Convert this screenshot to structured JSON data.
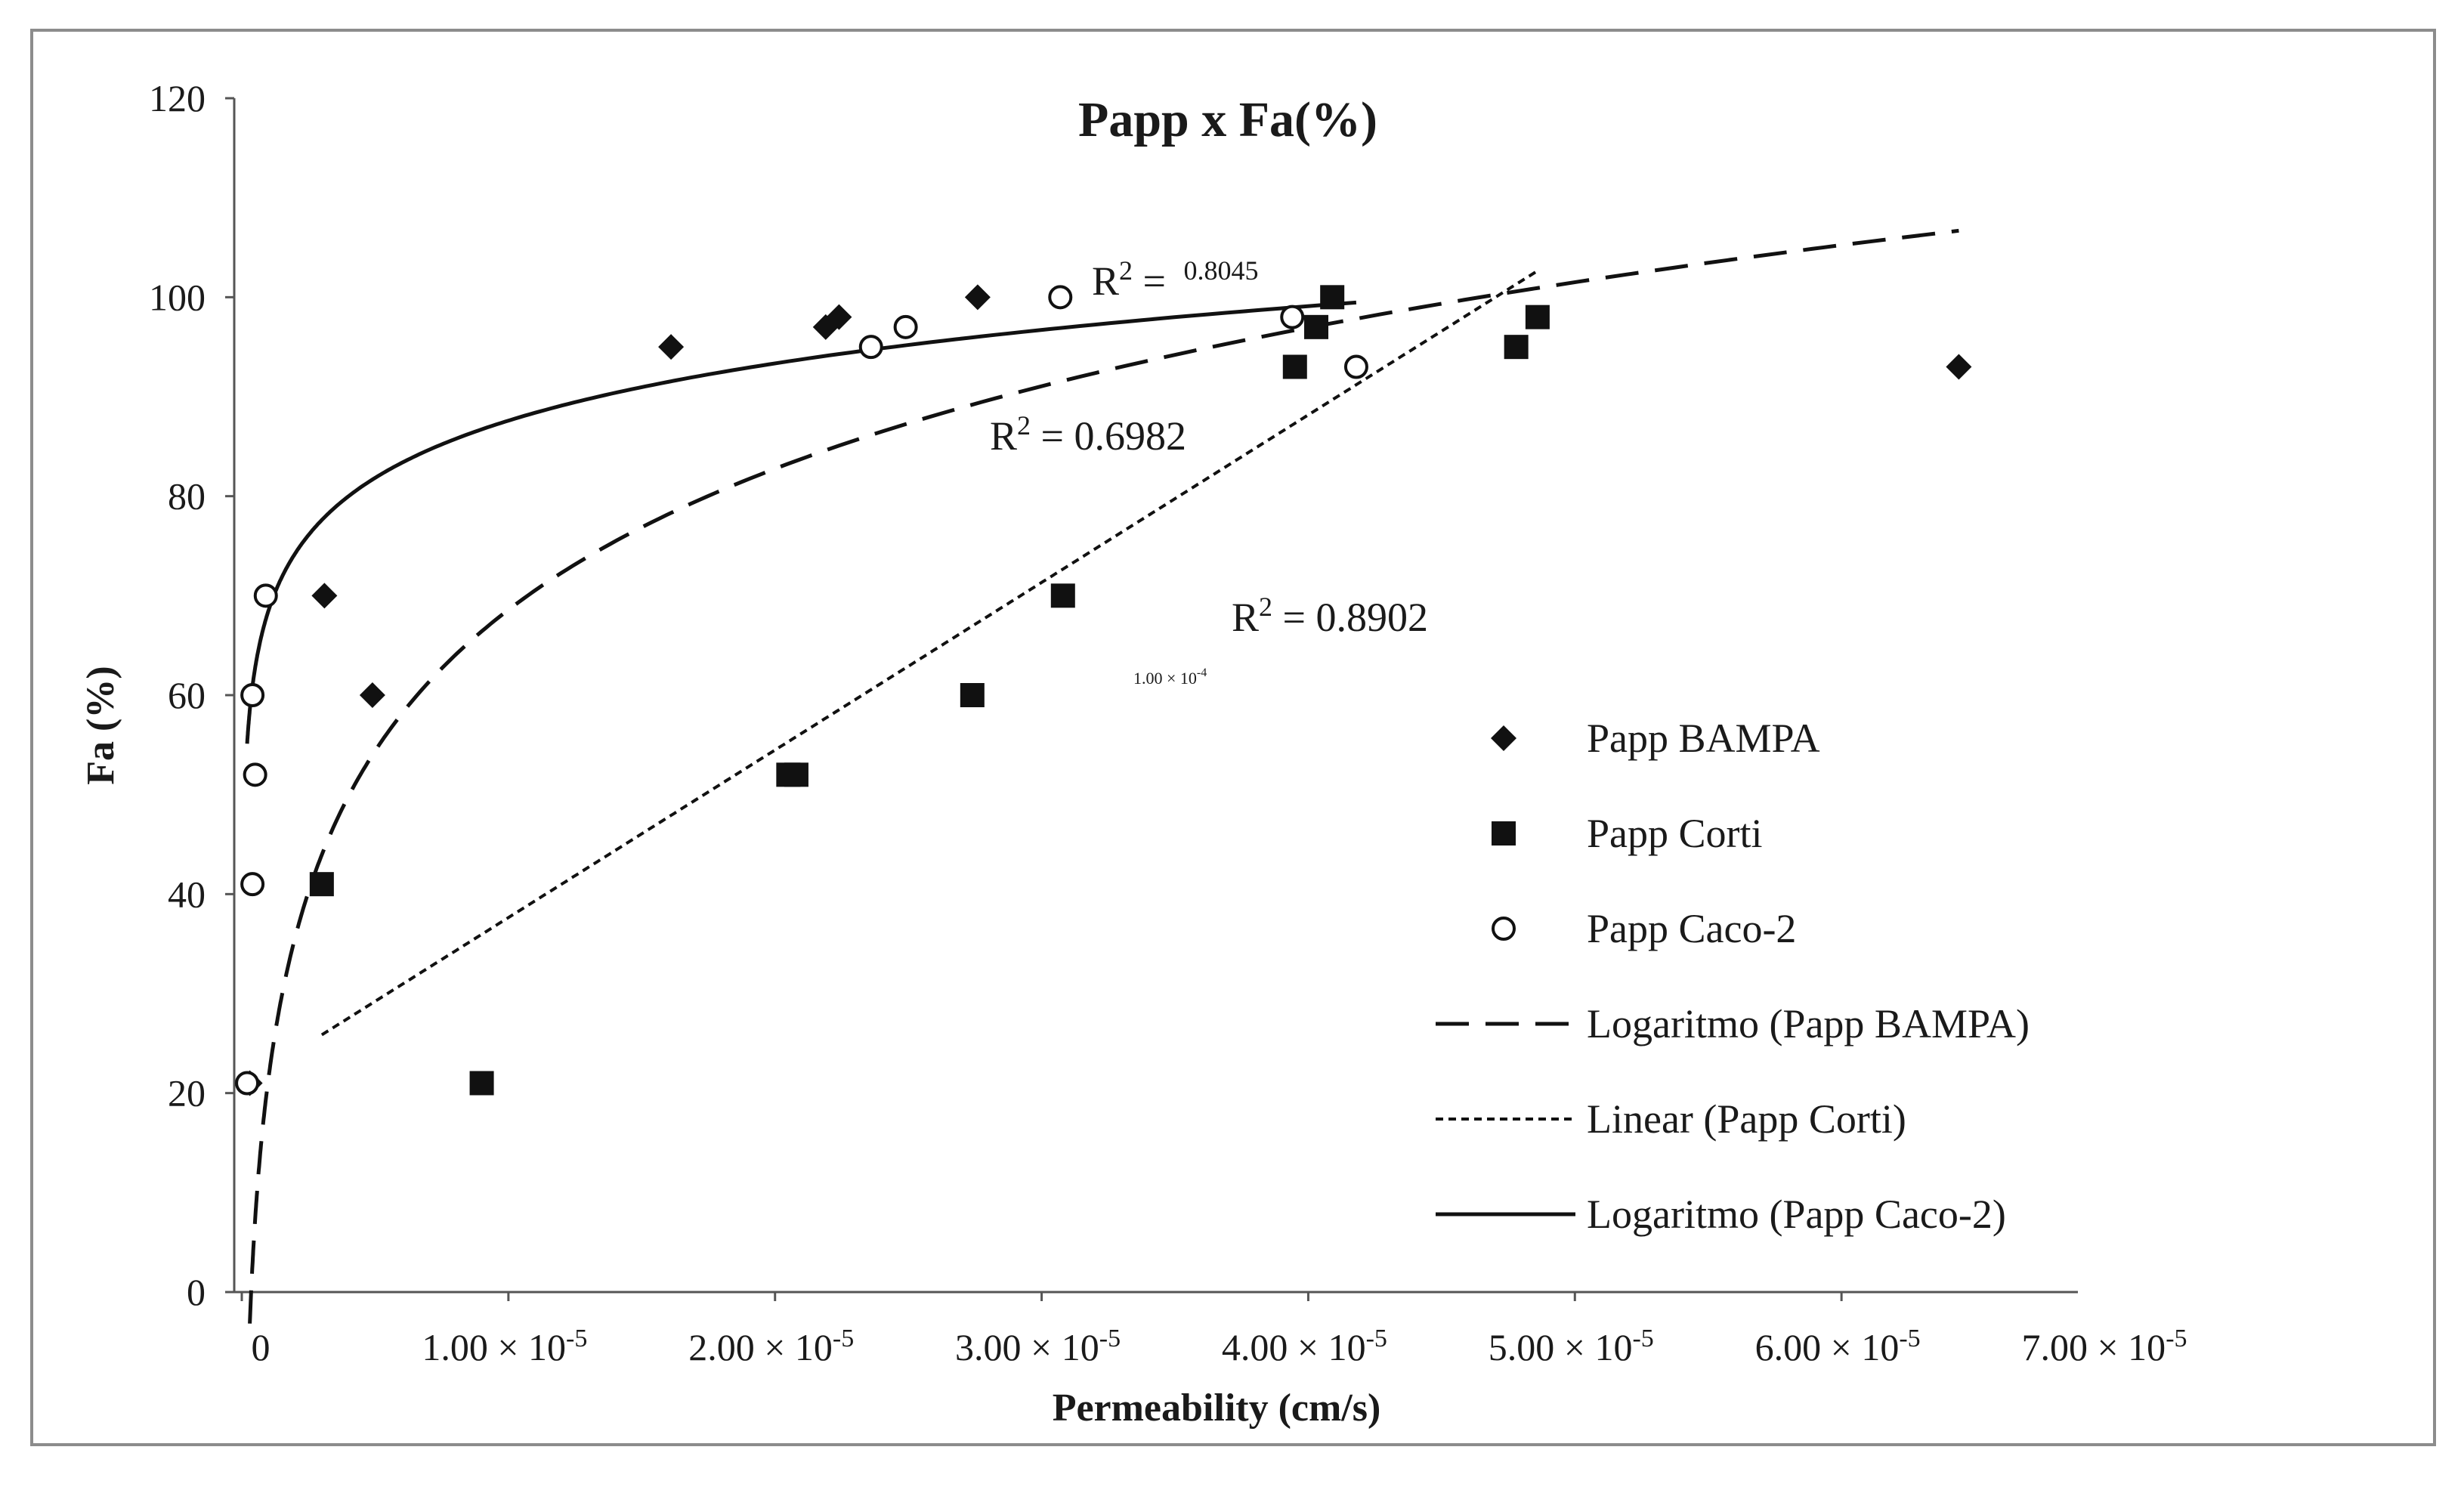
{
  "chart_data": {
    "type": "scatter",
    "title": "Papp x Fa(%)",
    "xlabel": "Permeability (cm/s)",
    "ylabel": "Fa (%)",
    "xlim": [
      0,
      7e-05
    ],
    "ylim": [
      0,
      120
    ],
    "x_ticks": [
      {
        "value": 0,
        "mantissa": "0",
        "exp": ""
      },
      {
        "value": 1e-05,
        "mantissa": "1.00 × 10",
        "exp": "-5"
      },
      {
        "value": 2e-05,
        "mantissa": "2.00 × 10",
        "exp": "-5"
      },
      {
        "value": 3e-05,
        "mantissa": "3.00 × 10",
        "exp": "-5"
      },
      {
        "value": 4e-05,
        "mantissa": "4.00 × 10",
        "exp": "-5"
      },
      {
        "value": 5e-05,
        "mantissa": "5.00 × 10",
        "exp": "-5"
      },
      {
        "value": 6e-05,
        "mantissa": "6.00 × 10",
        "exp": "-5"
      },
      {
        "value": 7e-05,
        "mantissa": "7.00 × 10",
        "exp": "-5"
      }
    ],
    "y_ticks": [
      "0",
      "20",
      "40",
      "60",
      "80",
      "100",
      "120"
    ],
    "series": [
      {
        "name": "Papp BAMPA",
        "marker": "diamond",
        "points": [
          [
            3e-07,
            21
          ],
          [
            3.1e-06,
            70
          ],
          [
            4.9e-06,
            60
          ],
          [
            1.61e-05,
            95
          ],
          [
            2.19e-05,
            97
          ],
          [
            2.24e-05,
            98
          ],
          [
            2.76e-05,
            100
          ],
          [
            6.44e-05,
            93
          ]
        ]
      },
      {
        "name": "Papp Corti",
        "marker": "square",
        "points": [
          [
            3e-06,
            41
          ],
          [
            9e-06,
            21
          ],
          [
            2.05e-05,
            52
          ],
          [
            2.08e-05,
            52
          ],
          [
            2.74e-05,
            60
          ],
          [
            3.08e-05,
            70
          ],
          [
            3.95e-05,
            93
          ],
          [
            4.03e-05,
            97
          ],
          [
            4.09e-05,
            100
          ],
          [
            4.78e-05,
            95
          ],
          [
            4.86e-05,
            98
          ]
        ]
      },
      {
        "name": "Papp Caco-2",
        "marker": "circle",
        "points": [
          [
            2e-07,
            21
          ],
          [
            4e-07,
            41
          ],
          [
            4e-07,
            60
          ],
          [
            5e-07,
            52
          ],
          [
            9e-07,
            70
          ],
          [
            2.36e-05,
            95
          ],
          [
            2.49e-05,
            97
          ],
          [
            3.07e-05,
            100
          ],
          [
            3.94e-05,
            98
          ],
          [
            4.18e-05,
            93
          ]
        ]
      }
    ],
    "trendlines": [
      {
        "name": "Logaritmo (Papp BAMPA)",
        "type": "log",
        "style": "long-dash",
        "a": 20.46,
        "b": 304.13,
        "x_range": [
          3e-07,
          6.44e-05
        ],
        "r2_label": "R",
        "r2_value": " = 0.6982"
      },
      {
        "name": "Linear (Papp Corti)",
        "type": "linear",
        "style": "short-dash",
        "slope": 1684200,
        "intercept": 20.8,
        "x_range": [
          3e-06,
          4.86e-05
        ],
        "r2_label": "R",
        "r2_value": " = 0.8902"
      },
      {
        "name": "Logaritmo (Papp Caco-2)",
        "type": "log",
        "style": "solid",
        "a": 8.3,
        "b": 183.15,
        "x_range": [
          2e-07,
          4.18e-05
        ],
        "r2_label": "R",
        "r2_value": "0.8045"
      }
    ],
    "annotations": [
      {
        "mantissa": "1.00 × 10",
        "exp": "-4"
      }
    ],
    "legend": {
      "position": "right",
      "entries": [
        "Papp BAMPA",
        "Papp Corti",
        "Papp Caco-2",
        "Logaritmo (Papp BAMPA)",
        "Linear (Papp Corti)",
        "Logaritmo (Papp Caco-2)"
      ]
    },
    "grid": false
  }
}
